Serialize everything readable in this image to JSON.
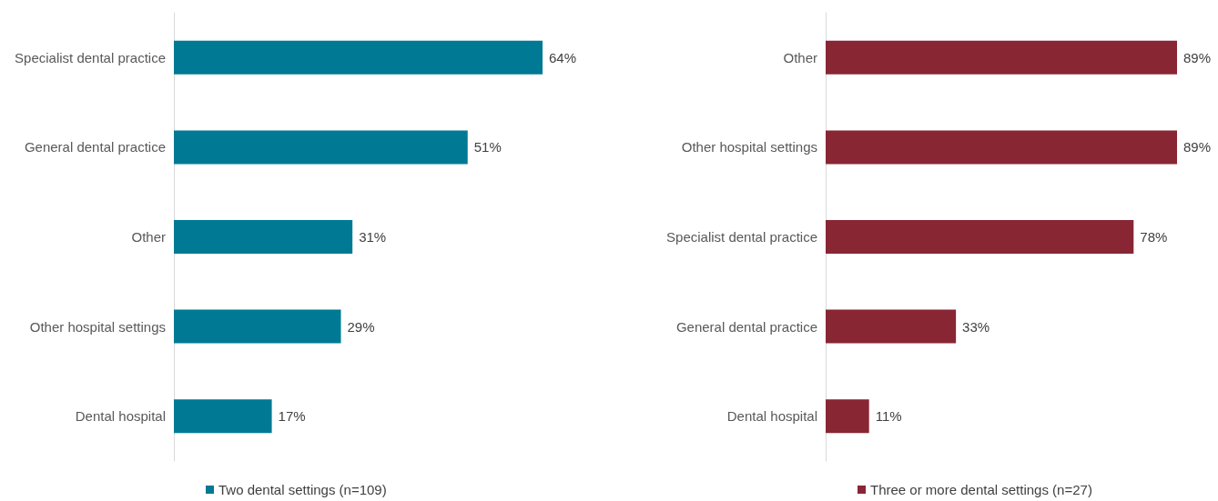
{
  "chart_data": [
    {
      "type": "bar",
      "orientation": "horizontal",
      "categories": [
        "Specialist dental practice",
        "General dental practice",
        "Other",
        "Other hospital settings",
        "Dental hospital"
      ],
      "series": [
        {
          "name": "Two dental settings (n=109)",
          "color": "#007a94",
          "values": [
            64,
            51,
            31,
            29,
            17
          ],
          "value_labels": [
            "64%",
            "51%",
            "31%",
            "29%",
            "17%"
          ]
        }
      ],
      "legend": "bottom"
    },
    {
      "type": "bar",
      "orientation": "horizontal",
      "categories": [
        "Other",
        "Other hospital settings",
        "Specialist dental practice",
        "General dental practice",
        "Dental hospital"
      ],
      "series": [
        {
          "name": "Three or more dental settings (n=27)",
          "color": "#882634",
          "values": [
            89,
            89,
            78,
            33,
            11
          ],
          "value_labels": [
            "89%",
            "89%",
            "78%",
            "33%",
            "11%"
          ]
        }
      ],
      "legend": "bottom"
    }
  ]
}
